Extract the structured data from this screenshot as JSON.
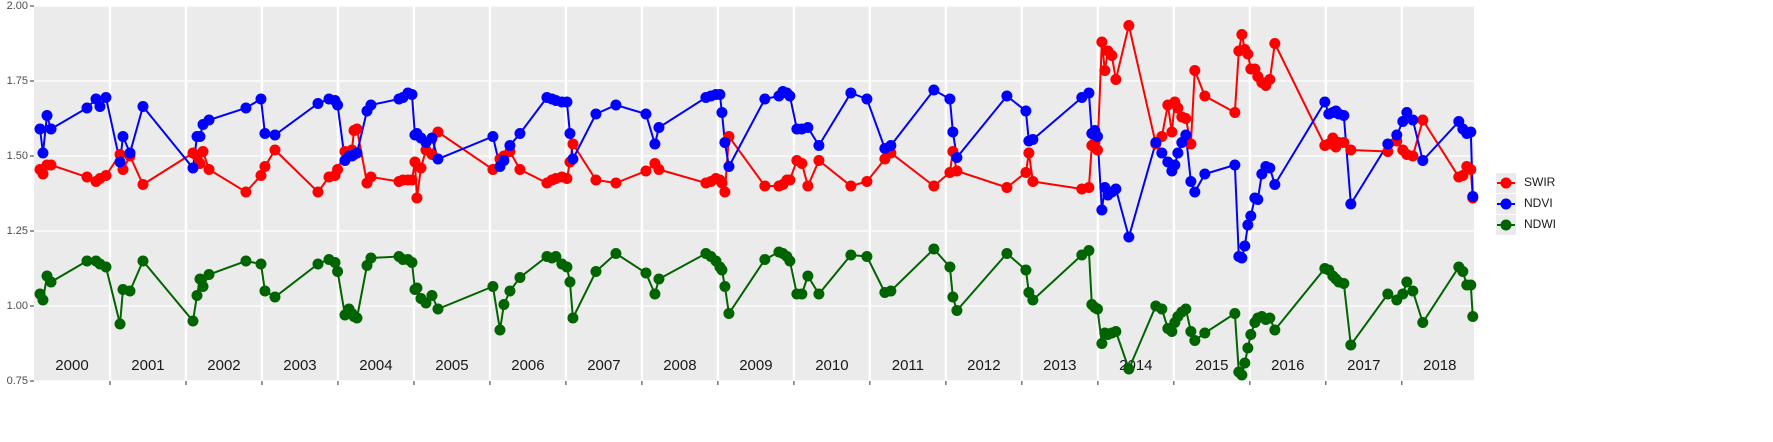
{
  "chart_data": {
    "type": "line",
    "x": [
      2000.079,
      2000.118,
      2000.171,
      2000.224,
      2000.697,
      2000.816,
      2000.868,
      2000.947,
      2001.132,
      2001.171,
      2001.263,
      2001.434,
      2002.092,
      2002.145,
      2002.184,
      2002.224,
      2002.303,
      2002.789,
      2002.987,
      2003.039,
      2003.171,
      2003.737,
      2003.882,
      2003.961,
      2003.995,
      2004.092,
      2004.145,
      2004.184,
      2004.211,
      2004.25,
      2004.382,
      2004.434,
      2004.803,
      2004.855,
      2004.921,
      2004.974,
      2005.013,
      2005.039,
      2005.092,
      2005.158,
      2005.237,
      2005.316,
      2006.039,
      2006.132,
      2006.184,
      2006.263,
      2006.395,
      2006.75,
      2006.816,
      2006.868,
      2006.947,
      2007.013,
      2007.053,
      2007.092,
      2007.395,
      2007.658,
      2008.053,
      2008.171,
      2008.224,
      2008.842,
      2008.908,
      2008.974,
      2009.026,
      2009.053,
      2009.092,
      2009.145,
      2009.618,
      2009.803,
      2009.855,
      2009.908,
      2009.947,
      2010.039,
      2010.105,
      2010.184,
      2010.329,
      2010.75,
      2010.961,
      2011.197,
      2011.276,
      2011.842,
      2012.053,
      2012.092,
      2012.145,
      2012.803,
      2013.053,
      2013.092,
      2013.145,
      2013.789,
      2013.882,
      2013.921,
      2013.961,
      2013.995,
      2014.053,
      2014.092,
      2014.132,
      2014.184,
      2014.237,
      2014.408,
      2014.763,
      2014.842,
      2014.921,
      2014.974,
      2015.013,
      2015.053,
      2015.105,
      2015.158,
      2015.224,
      2015.276,
      2015.408,
      2015.803,
      2015.855,
      2015.895,
      2015.934,
      2015.974,
      2016.013,
      2016.066,
      2016.105,
      2016.158,
      2016.211,
      2016.263,
      2016.329,
      2016.987,
      2017.039,
      2017.092,
      2017.132,
      2017.171,
      2017.237,
      2017.329,
      2017.816,
      2017.934,
      2018.013,
      2018.066,
      2018.145,
      2018.276,
      2018.75,
      2018.803,
      2018.855,
      2018.908,
      2018.934
    ],
    "series": [
      {
        "name": "SWIR",
        "color": "#ff0000",
        "values": [
          1.455,
          1.44,
          1.47,
          1.47,
          1.43,
          1.415,
          1.425,
          1.435,
          1.505,
          1.455,
          1.5,
          1.405,
          1.51,
          1.5,
          1.475,
          1.515,
          1.455,
          1.38,
          1.435,
          1.465,
          1.52,
          1.38,
          1.43,
          1.435,
          1.455,
          1.515,
          1.51,
          1.52,
          1.585,
          1.59,
          1.41,
          1.43,
          1.415,
          1.42,
          1.42,
          1.42,
          1.48,
          1.36,
          1.46,
          1.52,
          1.505,
          1.58,
          1.455,
          1.49,
          1.5,
          1.515,
          1.455,
          1.41,
          1.42,
          1.425,
          1.43,
          1.425,
          1.48,
          1.54,
          1.42,
          1.41,
          1.45,
          1.475,
          1.455,
          1.41,
          1.415,
          1.425,
          1.42,
          1.41,
          1.38,
          1.565,
          1.4,
          1.4,
          1.405,
          1.42,
          1.42,
          1.485,
          1.475,
          1.4,
          1.485,
          1.4,
          1.415,
          1.49,
          1.51,
          1.4,
          1.445,
          1.515,
          1.45,
          1.395,
          1.445,
          1.51,
          1.415,
          1.39,
          1.395,
          1.535,
          1.545,
          1.52,
          1.88,
          1.785,
          1.85,
          1.835,
          1.755,
          1.935,
          1.54,
          1.565,
          1.67,
          1.58,
          1.68,
          1.66,
          1.63,
          1.625,
          1.54,
          1.785,
          1.7,
          1.645,
          1.85,
          1.905,
          1.855,
          1.84,
          1.79,
          1.79,
          1.765,
          1.745,
          1.735,
          1.755,
          1.875,
          1.535,
          1.54,
          1.56,
          1.53,
          1.545,
          1.545,
          1.52,
          1.515,
          1.55,
          1.52,
          1.505,
          1.5,
          1.62,
          1.43,
          1.435,
          1.465,
          1.455,
          1.36
        ]
      },
      {
        "name": "NDVI",
        "color": "#0000ff",
        "values": [
          1.59,
          1.51,
          1.635,
          1.59,
          1.66,
          1.69,
          1.665,
          1.695,
          1.48,
          1.565,
          1.51,
          1.665,
          1.46,
          1.565,
          1.565,
          1.605,
          1.62,
          1.66,
          1.69,
          1.575,
          1.57,
          1.675,
          1.69,
          1.685,
          1.67,
          1.485,
          1.5,
          1.5,
          1.505,
          1.51,
          1.65,
          1.67,
          1.69,
          1.695,
          1.71,
          1.705,
          1.57,
          1.575,
          1.56,
          1.545,
          1.56,
          1.49,
          1.565,
          1.465,
          1.485,
          1.535,
          1.575,
          1.695,
          1.69,
          1.685,
          1.68,
          1.68,
          1.575,
          1.49,
          1.64,
          1.67,
          1.64,
          1.54,
          1.595,
          1.695,
          1.7,
          1.705,
          1.705,
          1.645,
          1.545,
          1.465,
          1.69,
          1.7,
          1.715,
          1.71,
          1.7,
          1.59,
          1.59,
          1.595,
          1.535,
          1.71,
          1.69,
          1.525,
          1.535,
          1.72,
          1.69,
          1.58,
          1.495,
          1.7,
          1.65,
          1.55,
          1.555,
          1.695,
          1.71,
          1.575,
          1.585,
          1.565,
          1.32,
          1.395,
          1.37,
          1.38,
          1.39,
          1.23,
          1.545,
          1.51,
          1.48,
          1.45,
          1.47,
          1.51,
          1.545,
          1.57,
          1.415,
          1.38,
          1.44,
          1.47,
          1.165,
          1.16,
          1.2,
          1.27,
          1.3,
          1.36,
          1.355,
          1.44,
          1.465,
          1.46,
          1.405,
          1.68,
          1.64,
          1.645,
          1.65,
          1.64,
          1.635,
          1.34,
          1.54,
          1.57,
          1.615,
          1.645,
          1.62,
          1.485,
          1.615,
          1.59,
          1.575,
          1.58,
          1.365
        ]
      },
      {
        "name": "NDWI",
        "color": "#006400",
        "values": [
          1.04,
          1.02,
          1.1,
          1.08,
          1.15,
          1.15,
          1.14,
          1.13,
          0.94,
          1.055,
          1.05,
          1.15,
          0.95,
          1.035,
          1.09,
          1.065,
          1.105,
          1.15,
          1.14,
          1.05,
          1.03,
          1.14,
          1.155,
          1.145,
          1.115,
          0.97,
          0.99,
          0.975,
          0.965,
          0.96,
          1.135,
          1.16,
          1.165,
          1.155,
          1.155,
          1.145,
          1.055,
          1.06,
          1.025,
          1.01,
          1.035,
          0.99,
          1.065,
          0.92,
          1.005,
          1.05,
          1.095,
          1.165,
          1.16,
          1.165,
          1.14,
          1.13,
          1.08,
          0.96,
          1.115,
          1.175,
          1.11,
          1.04,
          1.09,
          1.175,
          1.165,
          1.15,
          1.13,
          1.12,
          1.065,
          0.975,
          1.155,
          1.18,
          1.175,
          1.165,
          1.15,
          1.04,
          1.04,
          1.1,
          1.04,
          1.17,
          1.165,
          1.045,
          1.05,
          1.19,
          1.13,
          1.03,
          0.985,
          1.175,
          1.12,
          1.045,
          1.02,
          1.17,
          1.185,
          1.005,
          0.995,
          0.99,
          0.875,
          0.91,
          0.905,
          0.91,
          0.915,
          0.79,
          1.0,
          0.99,
          0.925,
          0.915,
          0.945,
          0.965,
          0.98,
          0.99,
          0.915,
          0.885,
          0.91,
          0.975,
          0.78,
          0.77,
          0.81,
          0.86,
          0.905,
          0.945,
          0.96,
          0.965,
          0.955,
          0.96,
          0.92,
          1.125,
          1.12,
          1.1,
          1.09,
          1.08,
          1.075,
          0.87,
          1.04,
          1.02,
          1.04,
          1.08,
          1.05,
          0.945,
          1.13,
          1.115,
          1.07,
          1.07,
          0.965
        ]
      }
    ],
    "xlim": [
      2000,
      2018.95
    ],
    "xticks": [
      2001,
      2002,
      2003,
      2004,
      2005,
      2006,
      2007,
      2008,
      2009,
      2010,
      2011,
      2012,
      2013,
      2014,
      2015,
      2016,
      2017,
      2018
    ],
    "year_labels": [
      "2000",
      "2001",
      "2002",
      "2003",
      "2004",
      "2005",
      "2006",
      "2007",
      "2008",
      "2009",
      "2010",
      "2011",
      "2012",
      "2013",
      "2014",
      "2015",
      "2016",
      "2017",
      "2018"
    ],
    "ylim": [
      0.75,
      2.0
    ],
    "yticks": [
      0.75,
      {
        "value": 1,
        "label": "1.00"
      },
      1.25,
      {
        "value": 1.5,
        "label": "1.50"
      },
      1.75,
      {
        "value": 2,
        "label": "2.00"
      }
    ],
    "grid": true,
    "legend": "right"
  }
}
